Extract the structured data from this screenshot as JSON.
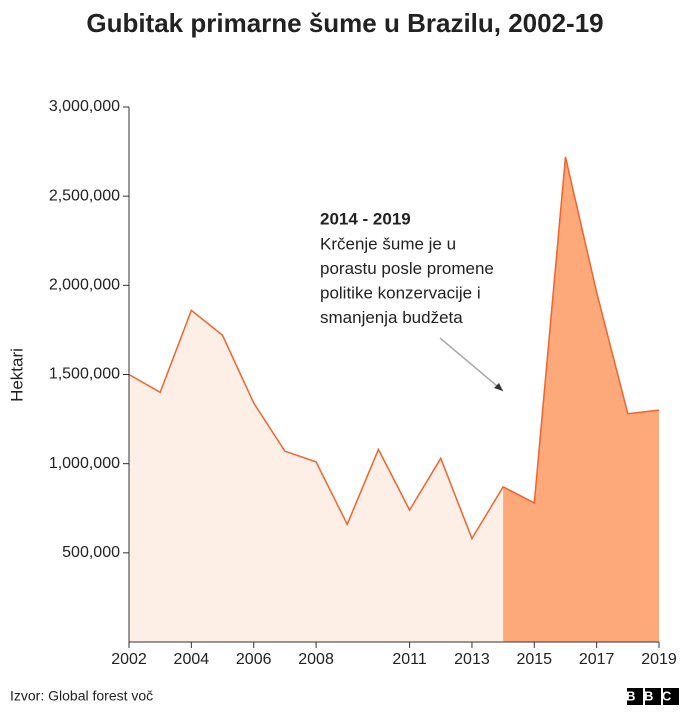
{
  "chart_data": {
    "type": "area",
    "title": "Gubitak primarne šume u Brazilu, 2002-19",
    "y_label": "Hektari",
    "x": [
      2002,
      2003,
      2004,
      2005,
      2006,
      2007,
      2008,
      2009,
      2010,
      2011,
      2012,
      2013,
      2014,
      2015,
      2016,
      2017,
      2018,
      2019
    ],
    "values": [
      1500000,
      1400000,
      1860000,
      1720000,
      1340000,
      1070000,
      1010000,
      660000,
      1080000,
      740000,
      1030000,
      580000,
      870000,
      780000,
      2720000,
      1960000,
      1280000,
      1300000
    ],
    "color": "#f0642d",
    "fill": "#fdeee6",
    "highlight_fill": "#fda97a",
    "highlight_range": [
      2014,
      2019
    ],
    "xlim": [
      2002,
      2019
    ],
    "xticks": [
      2002,
      2004,
      2006,
      2008,
      2011,
      2013,
      2015,
      2017,
      2019
    ],
    "ylim": [
      0,
      3000000
    ],
    "yticks": [
      {
        "value": 500000,
        "label": "500,000"
      },
      {
        "value": 1000000,
        "label": "1,000,000"
      },
      {
        "value": 1500000,
        "label": "1,500,000"
      },
      {
        "value": 2000000,
        "label": "2,000,000"
      },
      {
        "value": 2500000,
        "label": "2,500,000"
      },
      {
        "value": 3000000,
        "label": "3,000,000"
      }
    ],
    "annotation": {
      "title": "2014 - 2019",
      "lines": [
        "Krčenje šume je u",
        "porastu posle promene",
        "politike konzervacije i",
        "smanjenja budžeta"
      ]
    },
    "source": "Izvor: Global forest voč",
    "logo": "BBC"
  }
}
